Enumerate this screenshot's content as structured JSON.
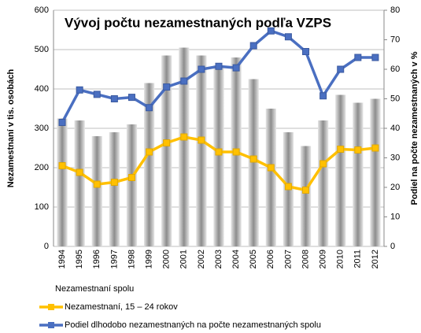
{
  "chart_data": {
    "type": "bar",
    "title": "Vývoj počtu nezamestnaných podľa VZPS",
    "y_label": "Nezamestnaní v tis. osobách",
    "y2_label": "Podiel na počte nezamestnaných v %",
    "categories": [
      "1994",
      "1995",
      "1996",
      "1997",
      "1998",
      "1999",
      "2000",
      "2001",
      "2002",
      "2003",
      "2004",
      "2005",
      "2006",
      "2007",
      "2008",
      "2009",
      "2010",
      "2011",
      "2012"
    ],
    "series": [
      {
        "name": "Nezamestnaní spolu",
        "type": "bar",
        "color": "#a6a6a6",
        "values": [
          325,
          320,
          280,
          290,
          310,
          415,
          485,
          505,
          485,
          460,
          480,
          425,
          350,
          290,
          255,
          320,
          385,
          365,
          375
        ]
      },
      {
        "name": "Nezamestnaní, 15 – 24 rokov",
        "type": "line",
        "color": "#ffc000",
        "values": [
          205,
          188,
          158,
          163,
          175,
          240,
          263,
          278,
          270,
          240,
          240,
          222,
          200,
          152,
          143,
          210,
          247,
          245,
          250
        ]
      },
      {
        "name": "Podiel dlhodobo nezamestnaných na počte nezamestnaných spolu",
        "type": "line",
        "axis": "y2",
        "color": "#4a6fc1",
        "values": [
          42,
          53,
          51.5,
          50,
          50.5,
          47,
          54,
          56,
          60,
          61,
          60.5,
          68,
          73,
          71,
          66,
          51,
          60,
          64,
          64
        ]
      }
    ],
    "ylim": [
      0,
      600
    ],
    "yticks": [
      0,
      100,
      200,
      300,
      400,
      500,
      600
    ],
    "y2lim": [
      0,
      80
    ],
    "y2ticks": [
      0,
      10,
      20,
      30,
      40,
      50,
      60,
      70,
      80
    ],
    "grid": true,
    "legend": "bottom"
  }
}
